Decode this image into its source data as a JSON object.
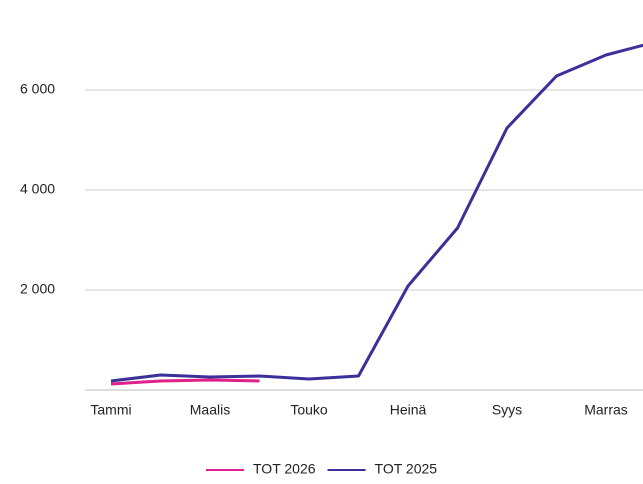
{
  "chart_data": {
    "type": "line",
    "categories": [
      "Tammi",
      null,
      "Maalis",
      null,
      "Touko",
      null,
      "Heinä",
      null,
      "Syys",
      null,
      "Marras",
      null
    ],
    "series": [
      {
        "name": "TOT 2026",
        "color": "#e0218a",
        "values": [
          120,
          180,
          200,
          180,
          null,
          null,
          null,
          null,
          null,
          null,
          null,
          null
        ]
      },
      {
        "name": "TOT 2025",
        "color": "#3b2f9a",
        "values": [
          180,
          300,
          260,
          280,
          220,
          280,
          2080,
          3240,
          5240,
          6280,
          6700,
          6960
        ]
      }
    ],
    "ylim": [
      0,
      7800
    ],
    "yticks": [
      {
        "value": 2000,
        "label": "2 000"
      },
      {
        "value": 4000,
        "label": "4 000"
      },
      {
        "value": 6000,
        "label": "6 000"
      }
    ],
    "grid": true,
    "legend": "bottom"
  }
}
